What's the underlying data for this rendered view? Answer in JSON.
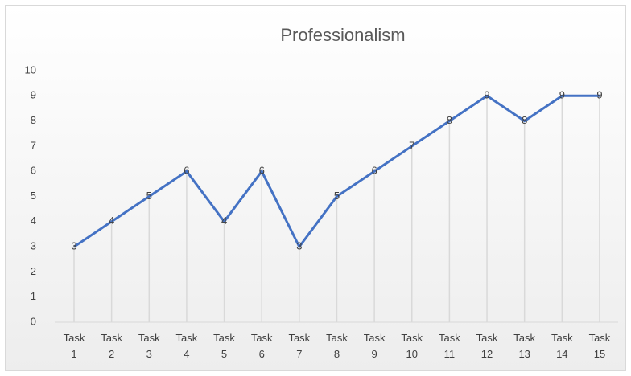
{
  "chart_data": {
    "type": "line",
    "title": "Professionalism",
    "categories": [
      "Task 1",
      "Task 2",
      "Task 3",
      "Task 4",
      "Task 5",
      "Task 6",
      "Task 7",
      "Task 8",
      "Task 9",
      "Task 10",
      "Task 11",
      "Task 12",
      "Task 13",
      "Task 14",
      "Task 15"
    ],
    "series": [
      {
        "name": "Professionalism",
        "color": "#4472c4",
        "values": [
          3,
          4,
          5,
          6,
          4,
          6,
          3,
          5,
          6,
          7,
          8,
          9,
          8,
          9,
          9
        ]
      }
    ],
    "ylim": [
      0,
      10
    ],
    "yticks": [
      0,
      1,
      2,
      3,
      4,
      5,
      6,
      7,
      8,
      9,
      10
    ],
    "drop_lines": true
  }
}
